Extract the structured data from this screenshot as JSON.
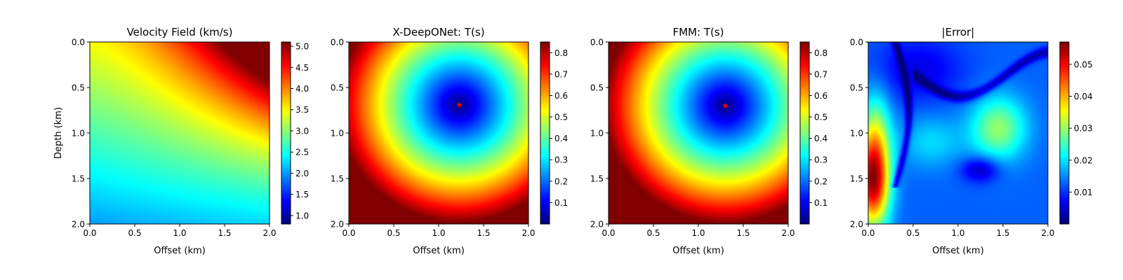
{
  "chart_data": [
    {
      "type": "heatmap",
      "title": "Velocity Field (km/s)",
      "xlabel": "Offset (km)",
      "ylabel": "Depth (km)",
      "x_ticks": [
        "0.0",
        "0.5",
        "1.0",
        "1.5",
        "2.0"
      ],
      "y_ticks": [
        "0.0",
        "0.5",
        "1.0",
        "1.5",
        "2.0"
      ],
      "xlim": [
        0,
        2
      ],
      "ylim": [
        2,
        0
      ],
      "colormap": "jet",
      "colorbar": {
        "min": 0.8,
        "max": 5.1,
        "ticks": [
          "1.0",
          "1.5",
          "2.0",
          "2.5",
          "3.0",
          "3.5",
          "4.0",
          "4.5",
          "5.0"
        ]
      },
      "field": "velocity",
      "source": null
    },
    {
      "type": "heatmap",
      "title": "X-DeepONet: T(s)",
      "xlabel": "Offset (km)",
      "ylabel": "",
      "x_ticks": [
        "0.0",
        "0.5",
        "1.0",
        "1.5",
        "2.0"
      ],
      "y_ticks": [
        "0.0",
        "0.5",
        "1.0",
        "1.5",
        "2.0"
      ],
      "xlim": [
        0,
        2
      ],
      "ylim": [
        2,
        0
      ],
      "colormap": "jet",
      "colorbar": {
        "min": 0.0,
        "max": 0.85,
        "ticks": [
          "0.1",
          "0.2",
          "0.3",
          "0.4",
          "0.5",
          "0.6",
          "0.7",
          "0.8"
        ]
      },
      "field": "traveltime",
      "source": {
        "x": 1.23,
        "y": 0.69
      }
    },
    {
      "type": "heatmap",
      "title": "FMM: T(s)",
      "xlabel": "Offset (km)",
      "ylabel": "",
      "x_ticks": [
        "0.0",
        "0.5",
        "1.0",
        "1.5",
        "2.0"
      ],
      "y_ticks": [
        "0.0",
        "0.5",
        "1.0",
        "1.5",
        "2.0"
      ],
      "xlim": [
        0,
        2
      ],
      "ylim": [
        2,
        0
      ],
      "colormap": "jet",
      "colorbar": {
        "min": 0.0,
        "max": 0.85,
        "ticks": [
          "0.1",
          "0.2",
          "0.3",
          "0.4",
          "0.5",
          "0.6",
          "0.7",
          "0.8"
        ]
      },
      "field": "traveltime",
      "source": {
        "x": 1.3,
        "y": 0.7
      }
    },
    {
      "type": "heatmap",
      "title": "|Error|",
      "xlabel": "Offset (km)",
      "ylabel": "",
      "x_ticks": [
        "0.0",
        "0.5",
        "1.0",
        "1.5",
        "2.0"
      ],
      "y_ticks": [
        "0.0",
        "0.5",
        "1.0",
        "1.5",
        "2.0"
      ],
      "xlim": [
        0,
        2
      ],
      "ylim": [
        2,
        0
      ],
      "colormap": "jet",
      "colorbar": {
        "min": 0.0,
        "max": 0.057,
        "ticks": [
          "0.01",
          "0.02",
          "0.03",
          "0.04",
          "0.05"
        ]
      },
      "field": "error",
      "source": null
    }
  ],
  "colors": {
    "source_marker": "#ff0000"
  }
}
